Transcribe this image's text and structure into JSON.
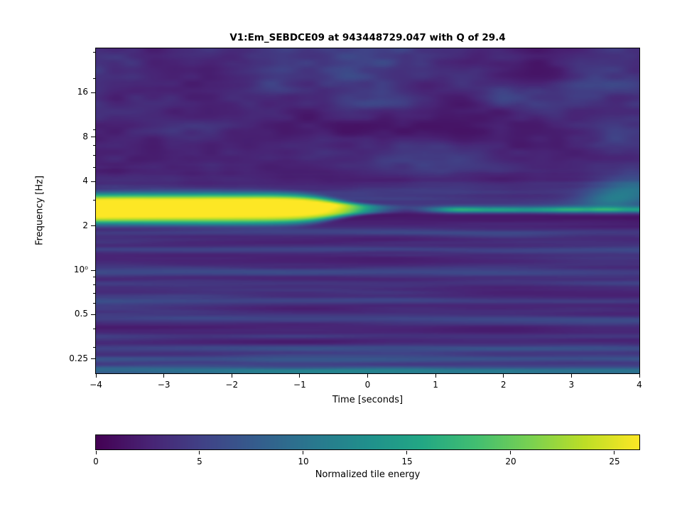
{
  "chart_data": {
    "type": "heatmap",
    "title": "V1:Em_SEBDCE09 at 943448729.047 with Q of 29.4",
    "xlabel": "Time [seconds]",
    "ylabel": "Frequency [Hz]",
    "x_range": [
      -4,
      4
    ],
    "x_ticks": [
      {
        "label": "−4",
        "value": -4
      },
      {
        "label": "−3",
        "value": -3
      },
      {
        "label": "−2",
        "value": -2
      },
      {
        "label": "−1",
        "value": -1
      },
      {
        "label": "0",
        "value": 0
      },
      {
        "label": "1",
        "value": 1
      },
      {
        "label": "2",
        "value": 2
      },
      {
        "label": "3",
        "value": 3
      },
      {
        "label": "4",
        "value": 4
      }
    ],
    "y_scale": "log",
    "y_range_hz": [
      0.2,
      32
    ],
    "y_ticks": [
      {
        "label": "16",
        "value": 16
      },
      {
        "label": "8",
        "value": 8
      },
      {
        "label": "4",
        "value": 4
      },
      {
        "label": "2",
        "value": 2
      },
      {
        "label": "10⁰",
        "value": 1
      },
      {
        "label": "0.5",
        "value": 0.5
      },
      {
        "label": "0.25",
        "value": 0.25
      }
    ],
    "y_minor_ticks_hz": [
      0.3,
      0.4,
      0.6,
      0.7,
      0.8,
      0.9,
      3,
      5,
      6,
      7,
      9,
      20,
      30
    ],
    "colormap": "viridis",
    "colorbar": {
      "label": "Normalized tile energy",
      "ticks": [
        0,
        5,
        10,
        15,
        20,
        25
      ],
      "vmin": 0,
      "vmax": 26.2
    },
    "features": [
      {
        "name": "primary-burst",
        "shape": "horizontal-blob",
        "frequency_hz": 2.6,
        "time_start_s": -4,
        "time_end_s": 0.3,
        "peak_normalized_energy": 26
      },
      {
        "name": "post-burst-tail",
        "shape": "thin-line",
        "frequency_hz": 2.6,
        "time_start_s": 0.6,
        "time_end_s": 4,
        "peak_normalized_energy": 13
      },
      {
        "name": "background",
        "shape": "mottled-noise",
        "normalized_energy_range": [
          1,
          8
        ]
      }
    ]
  }
}
